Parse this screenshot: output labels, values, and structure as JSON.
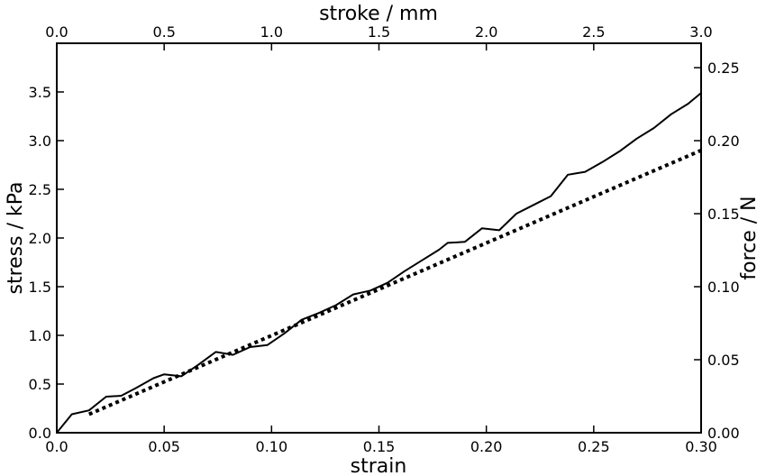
{
  "chart_data": {
    "type": "line",
    "title": "",
    "xlabel": "strain",
    "ylabel": "stress / kPa",
    "x2label": "stroke / mm",
    "y2label": "force / N",
    "xlim": [
      0,
      0.3
    ],
    "ylim": [
      0,
      4.0
    ],
    "x2lim": [
      0,
      3.0
    ],
    "y2lim": [
      0,
      0.2667
    ],
    "grid": false,
    "legend": "none",
    "xticks": [
      0.0,
      0.05,
      0.1,
      0.15,
      0.2,
      0.25,
      0.3
    ],
    "xtick_labels": [
      "0.0",
      "0.05",
      "0.10",
      "0.15",
      "0.20",
      "0.25",
      "0.30"
    ],
    "yticks": [
      0.0,
      0.5,
      1.0,
      1.5,
      2.0,
      2.5,
      3.0,
      3.5
    ],
    "ytick_labels": [
      "0.0",
      "0.5",
      "1.0",
      "1.5",
      "2.0",
      "2.5",
      "3.0",
      "3.5"
    ],
    "x2ticks": [
      0.0,
      0.5,
      1.0,
      1.5,
      2.0,
      2.5,
      3.0
    ],
    "x2tick_labels": [
      "0.0",
      "0.5",
      "1.0",
      "1.5",
      "2.0",
      "2.5",
      "3.0"
    ],
    "y2ticks": [
      0.0,
      0.05,
      0.1,
      0.15,
      0.2,
      0.25
    ],
    "y2tick_labels": [
      "0.00",
      "0.05",
      "0.10",
      "0.15",
      "0.20",
      "0.25"
    ],
    "series": [
      {
        "style": "solid",
        "color": "#000000",
        "x": [
          0.0,
          0.007,
          0.015,
          0.023,
          0.03,
          0.037,
          0.045,
          0.05,
          0.058,
          0.066,
          0.074,
          0.082,
          0.09,
          0.098,
          0.106,
          0.114,
          0.122,
          0.13,
          0.138,
          0.146,
          0.154,
          0.162,
          0.17,
          0.178,
          0.182,
          0.19,
          0.198,
          0.206,
          0.214,
          0.222,
          0.23,
          0.238,
          0.246,
          0.254,
          0.262,
          0.27,
          0.278,
          0.286,
          0.294,
          0.3
        ],
        "y": [
          0.0,
          0.19,
          0.23,
          0.37,
          0.38,
          0.46,
          0.56,
          0.6,
          0.58,
          0.7,
          0.83,
          0.8,
          0.88,
          0.9,
          1.02,
          1.16,
          1.23,
          1.31,
          1.42,
          1.46,
          1.54,
          1.66,
          1.77,
          1.88,
          1.95,
          1.96,
          2.1,
          2.08,
          2.25,
          2.34,
          2.43,
          2.65,
          2.68,
          2.78,
          2.89,
          3.02,
          3.13,
          3.27,
          3.38,
          3.49
        ]
      },
      {
        "style": "dotted",
        "color": "#000000",
        "x": [
          0.015,
          0.3
        ],
        "y": [
          0.19,
          2.9
        ]
      }
    ]
  }
}
